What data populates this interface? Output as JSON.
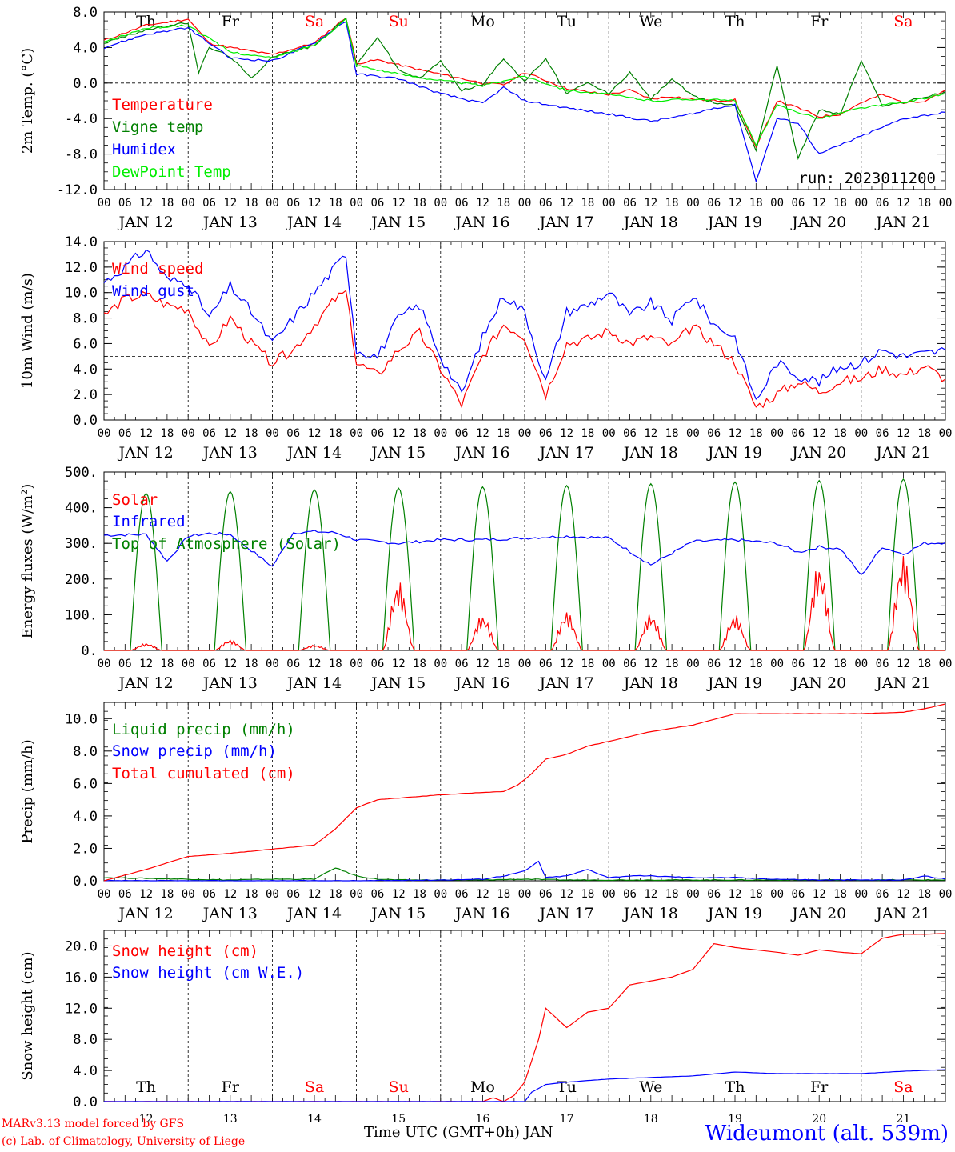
{
  "shared": {
    "day_names": [
      "Th",
      "Fr",
      "Sa",
      "Su",
      "Mo",
      "Tu",
      "We",
      "Th",
      "Fr",
      "Sa"
    ],
    "weekend_color": "#ff0000",
    "weekday_color": "#000000",
    "weekend_days": [
      2,
      3,
      9
    ],
    "date_labels": [
      "JAN 12",
      "JAN 13",
      "JAN 14",
      "JAN 15",
      "JAN 16",
      "JAN 17",
      "JAN 18",
      "JAN 19",
      "JAN 20",
      "JAN 21"
    ],
    "hour_ticks": [
      "00",
      "06",
      "12",
      "18"
    ],
    "last_tick": "00",
    "bottom_day_numbers": [
      "12",
      "13",
      "14",
      "15",
      "16",
      "17",
      "18",
      "19",
      "20",
      "21"
    ],
    "x_axis_label": "Time UTC (GMT+0h) JAN"
  },
  "chart_data": [
    {
      "type": "line",
      "ylabel": "2m Temp. (°C)",
      "ylim": [
        -12,
        8
      ],
      "yticks": [
        "8.0",
        "4.0",
        "0.0",
        "-4.0",
        "-8.0",
        "-12.0"
      ],
      "reference_line": 0,
      "run_label": "run: 2023011200",
      "x_unit": "hours since JAN 12 00 UTC",
      "series": [
        {
          "name": "Temperature",
          "color": "#ff0000",
          "x": [
            0,
            12,
            24,
            30,
            36,
            48,
            60,
            69,
            72,
            78,
            90,
            102,
            108,
            114,
            120,
            126,
            132,
            138,
            144,
            150,
            156,
            162,
            168,
            174,
            180,
            186,
            192,
            198,
            204,
            210,
            216,
            222,
            228,
            234,
            240
          ],
          "y": [
            4.8,
            6.5,
            7.2,
            4.5,
            4.0,
            3.2,
            4.5,
            7.4,
            2.2,
            2.6,
            1.5,
            0.5,
            0,
            -0.2,
            1.2,
            0.3,
            -0.6,
            -1.0,
            -1.3,
            -0.8,
            -1.8,
            -1.5,
            -1.8,
            -2.0,
            -1.9,
            -7.3,
            -2.0,
            -2.8,
            -3.8,
            -3.5,
            -2.2,
            -1.3,
            -2.2,
            -2.0,
            -0.8
          ]
        },
        {
          "name": "Vigne temp",
          "color": "#008000",
          "x": [
            0,
            12,
            24,
            27,
            30,
            36,
            42,
            48,
            60,
            69,
            72,
            78,
            84,
            90,
            96,
            102,
            108,
            114,
            120,
            126,
            132,
            138,
            144,
            150,
            156,
            162,
            168,
            174,
            180,
            186,
            192,
            198,
            204,
            210,
            216,
            222,
            228,
            234,
            240
          ],
          "y": [
            4.5,
            6.0,
            6.8,
            1.2,
            4.0,
            3.0,
            0.5,
            3.0,
            4.2,
            7.3,
            2.0,
            5.2,
            1.5,
            0.5,
            2.5,
            -0.8,
            -0.2,
            2.8,
            0.2,
            2.7,
            -1.2,
            0.0,
            -1.2,
            1.2,
            -1.8,
            0.5,
            -1.5,
            -2.2,
            -2.5,
            -7.5,
            2.0,
            -8.5,
            -3.0,
            -3.5,
            2.5,
            -2.5,
            -2.2,
            -1.6,
            -1.0
          ]
        },
        {
          "name": "Humidex",
          "color": "#0000ff",
          "x": [
            0,
            12,
            24,
            36,
            48,
            60,
            69,
            72,
            84,
            96,
            108,
            114,
            120,
            132,
            144,
            156,
            168,
            174,
            180,
            186,
            192,
            198,
            204,
            216,
            228,
            240
          ],
          "y": [
            4.0,
            5.5,
            6.2,
            2.8,
            2.5,
            4.5,
            7.0,
            1.0,
            0.5,
            -1.2,
            -2.3,
            -0.5,
            -2.0,
            -2.8,
            -3.5,
            -4.3,
            -3.5,
            -2.8,
            -2.5,
            -11.0,
            -4.0,
            -4.5,
            -8.0,
            -6.0,
            -4.0,
            -3.3
          ]
        },
        {
          "name": "DewPoint Temp",
          "color": "#00ee00",
          "x": [
            0,
            12,
            24,
            36,
            48,
            60,
            69,
            72,
            84,
            96,
            108,
            120,
            132,
            144,
            156,
            168,
            180,
            186,
            192,
            204,
            216,
            228,
            240
          ],
          "y": [
            4.6,
            6.2,
            6.5,
            3.5,
            2.8,
            4.3,
            7.2,
            2.0,
            1.0,
            0.3,
            -0.3,
            0.8,
            -0.8,
            -1.3,
            -2.0,
            -1.8,
            -2.0,
            -7.0,
            -2.5,
            -4.0,
            -2.8,
            -2.2,
            -1.2
          ]
        }
      ]
    },
    {
      "type": "line",
      "ylabel": "10m Wind (m/s)",
      "ylim": [
        0,
        14
      ],
      "yticks": [
        "14.0",
        "12.0",
        "10.0",
        "8.0",
        "6.0",
        "4.0",
        "2.0",
        "0.0"
      ],
      "reference_line": 5,
      "x_unit": "hours since JAN 12 00 UTC",
      "series": [
        {
          "name": "Wind speed",
          "color": "#ff0000",
          "x": [
            0,
            6,
            12,
            18,
            24,
            30,
            36,
            42,
            48,
            54,
            60,
            66,
            69,
            72,
            78,
            84,
            90,
            96,
            102,
            108,
            114,
            120,
            126,
            132,
            138,
            144,
            150,
            156,
            162,
            168,
            174,
            180,
            186,
            192,
            198,
            204,
            210,
            216,
            222,
            228,
            234,
            240
          ],
          "y": [
            8.2,
            9.5,
            9.8,
            9.0,
            8.7,
            5.5,
            8.0,
            6.0,
            4.5,
            5.5,
            7.5,
            9.5,
            10.0,
            4.5,
            3.5,
            5.5,
            6.8,
            4.0,
            1.2,
            5.0,
            7.5,
            6.5,
            2.0,
            6.0,
            6.3,
            7.0,
            6.0,
            6.5,
            5.8,
            7.3,
            6.0,
            4.5,
            1.0,
            2.0,
            3.0,
            2.2,
            3.0,
            3.2,
            4.0,
            3.5,
            4.2,
            3.2
          ]
        },
        {
          "name": "Wind gust",
          "color": "#0000ff",
          "x": [
            0,
            6,
            12,
            18,
            24,
            30,
            36,
            42,
            48,
            54,
            60,
            66,
            69,
            72,
            78,
            84,
            90,
            96,
            102,
            108,
            114,
            120,
            126,
            132,
            138,
            144,
            150,
            156,
            162,
            168,
            174,
            180,
            186,
            192,
            198,
            204,
            210,
            216,
            222,
            228,
            234,
            240
          ],
          "y": [
            10.8,
            12.0,
            13.4,
            11.0,
            10.8,
            8.0,
            10.5,
            8.5,
            6.0,
            8.0,
            10.0,
            12.0,
            13.0,
            5.5,
            5.0,
            8.0,
            9.0,
            5.0,
            2.0,
            6.5,
            9.8,
            8.5,
            3.0,
            8.5,
            9.0,
            10.0,
            8.2,
            9.2,
            7.8,
            9.8,
            7.5,
            6.5,
            1.5,
            4.5,
            3.5,
            3.0,
            4.2,
            4.5,
            5.5,
            5.0,
            5.2,
            5.5
          ]
        }
      ]
    },
    {
      "type": "line",
      "ylabel": "Energy fluxes (W/m²)",
      "ylim": [
        0,
        500
      ],
      "yticks": [
        "500.",
        "400.",
        "300.",
        "200.",
        "100.",
        "0."
      ],
      "x_unit": "hours since JAN 12 00 UTC",
      "daily_peaks": {
        "toa_solar": [
          440,
          445,
          450,
          455,
          458,
          462,
          467,
          472,
          476,
          480
        ],
        "solar": [
          20,
          30,
          15,
          195,
          100,
          110,
          105,
          100,
          245,
          270
        ]
      },
      "series": [
        {
          "name": "Solar",
          "color": "#ff0000"
        },
        {
          "name": "Infrared",
          "color": "#0000ff",
          "x": [
            0,
            12,
            18,
            24,
            30,
            36,
            48,
            54,
            60,
            66,
            72,
            84,
            96,
            108,
            120,
            132,
            144,
            156,
            168,
            180,
            192,
            198,
            204,
            210,
            216,
            222,
            228,
            234,
            240
          ],
          "y": [
            323,
            325,
            250,
            320,
            328,
            325,
            235,
            330,
            333,
            330,
            310,
            300,
            310,
            310,
            315,
            320,
            315,
            240,
            305,
            310,
            300,
            275,
            290,
            285,
            210,
            290,
            270,
            300,
            302
          ]
        },
        {
          "name": "Top of Atmosphere (Solar)",
          "color": "#008000"
        }
      ]
    },
    {
      "type": "line",
      "ylabel": "Precip (mm/h)",
      "ylim": [
        0,
        11
      ],
      "yticks": [
        "10.0",
        "8.0",
        "6.0",
        "4.0",
        "2.0",
        "0.0"
      ],
      "x_unit": "hours since JAN 12 00 UTC",
      "series": [
        {
          "name": "Liquid precip (mm/h)",
          "color": "#008000",
          "x": [
            0,
            12,
            24,
            36,
            48,
            60,
            66,
            72,
            78,
            84,
            96,
            108,
            120,
            132,
            144,
            156,
            168,
            180,
            192,
            204,
            216,
            228,
            240
          ],
          "y": [
            0.2,
            0.15,
            0.1,
            0.05,
            0.1,
            0.1,
            0.8,
            0.3,
            0.1,
            0.05,
            0.05,
            0.05,
            0.1,
            0.05,
            0.05,
            0.05,
            0.05,
            0.05,
            0.05,
            0.05,
            0.05,
            0.05,
            0.05
          ]
        },
        {
          "name": "Snow precip (mm/h)",
          "color": "#0000ff",
          "x": [
            0,
            24,
            48,
            72,
            96,
            108,
            114,
            120,
            124,
            126,
            132,
            138,
            144,
            150,
            156,
            168,
            180,
            192,
            204,
            216,
            228,
            234,
            240
          ],
          "y": [
            0,
            0,
            0,
            0,
            0.05,
            0.1,
            0.3,
            0.6,
            1.2,
            0.2,
            0.3,
            0.7,
            0.2,
            0.3,
            0.3,
            0.2,
            0.2,
            0.1,
            0.05,
            0.05,
            0.05,
            0.3,
            0.1
          ]
        },
        {
          "name": "Total cumulated (cm)",
          "color": "#ff0000",
          "x": [
            0,
            12,
            24,
            36,
            48,
            60,
            66,
            72,
            78,
            84,
            96,
            108,
            114,
            118,
            122,
            126,
            132,
            138,
            144,
            156,
            168,
            180,
            192,
            204,
            216,
            228,
            234,
            240
          ],
          "y": [
            0,
            0.7,
            1.5,
            1.7,
            1.95,
            2.2,
            3.2,
            4.5,
            5.0,
            5.1,
            5.3,
            5.45,
            5.5,
            5.9,
            6.6,
            7.5,
            7.8,
            8.3,
            8.6,
            9.2,
            9.6,
            10.3,
            10.3,
            10.3,
            10.3,
            10.4,
            10.6,
            10.9
          ]
        }
      ]
    },
    {
      "type": "line",
      "ylabel": "Snow height (cm)",
      "ylim": [
        0,
        22
      ],
      "yticks": [
        "20.0",
        "16.0",
        "12.0",
        "8.0",
        "4.0",
        "0.0"
      ],
      "x_unit": "hours since JAN 12 00 UTC",
      "series": [
        {
          "name": "Snow height (cm)",
          "color": "#ff0000",
          "x": [
            0,
            72,
            108,
            111,
            114,
            117,
            120,
            124,
            126,
            132,
            138,
            144,
            150,
            156,
            162,
            168,
            174,
            180,
            186,
            192,
            198,
            204,
            210,
            216,
            222,
            228,
            234,
            240
          ],
          "y": [
            0,
            0,
            0,
            0.5,
            0,
            0.8,
            2.5,
            8.0,
            12.0,
            9.5,
            11.5,
            12.0,
            15.0,
            15.5,
            16.0,
            17.0,
            20.3,
            19.8,
            19.5,
            19.2,
            18.8,
            19.5,
            19.2,
            19.0,
            21.0,
            21.5,
            21.5,
            21.6
          ]
        },
        {
          "name": "Snow height (cm W.E.)",
          "color": "#0000ff",
          "x": [
            0,
            120,
            122,
            126,
            132,
            144,
            156,
            168,
            180,
            192,
            204,
            216,
            228,
            234,
            240
          ],
          "y": [
            0,
            0,
            1.2,
            2.2,
            2.5,
            2.9,
            3.1,
            3.3,
            3.8,
            3.6,
            3.6,
            3.6,
            3.9,
            4.0,
            4.1
          ]
        }
      ]
    }
  ],
  "footer": {
    "model_line1": "MARv3.13 model forced by GFS",
    "model_line2": "(c) Lab. of Climatology, University of Liege",
    "station": "Wideumont (alt. 539m)"
  }
}
